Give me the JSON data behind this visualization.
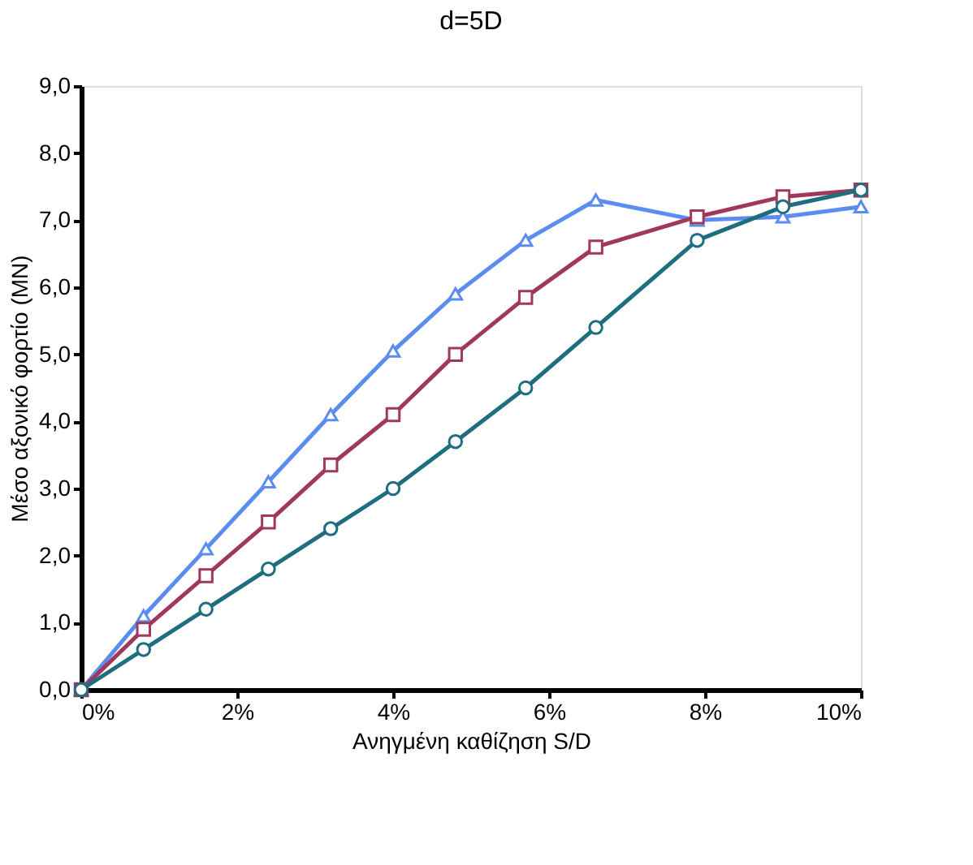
{
  "chart_data": {
    "type": "line",
    "title": "d=5D",
    "xlabel": "Ανηγμένη καθίζηση S/D",
    "ylabel": "Μέσο αξονικό φορτίο (MN)",
    "x": [
      0,
      0.8,
      1.6,
      2.4,
      3.2,
      4.0,
      4.8,
      5.7,
      6.6,
      7.9,
      9.0,
      10
    ],
    "series": [
      {
        "color": "#5b8cf0",
        "marker": "triangle",
        "values": [
          0,
          1.1,
          2.1,
          3.1,
          4.1,
          5.05,
          5.9,
          6.7,
          7.3,
          7.0,
          7.05,
          7.2
        ]
      },
      {
        "color": "#a0385a",
        "marker": "square",
        "values": [
          0,
          0.9,
          1.7,
          2.5,
          3.35,
          4.1,
          5.0,
          5.85,
          6.6,
          7.05,
          7.35,
          7.45
        ]
      },
      {
        "color": "#1f6e7f",
        "marker": "circle",
        "values": [
          0,
          0.6,
          1.2,
          1.8,
          2.4,
          3.0,
          3.7,
          4.5,
          5.4,
          6.7,
          7.2,
          7.45
        ]
      }
    ],
    "xlim": [
      0,
      10
    ],
    "ylim": [
      0,
      9
    ],
    "xticks": [
      {
        "value": 0,
        "label": "0%"
      },
      {
        "value": 2,
        "label": "2%"
      },
      {
        "value": 4,
        "label": "4%"
      },
      {
        "value": 6,
        "label": "6%"
      },
      {
        "value": 8,
        "label": "8%"
      },
      {
        "value": 10,
        "label": "10%"
      }
    ],
    "yticks": [
      {
        "value": 0,
        "label": "0,0"
      },
      {
        "value": 1,
        "label": "1,0"
      },
      {
        "value": 2,
        "label": "2,0"
      },
      {
        "value": 3,
        "label": "3,0"
      },
      {
        "value": 4,
        "label": "4,0"
      },
      {
        "value": 5,
        "label": "5,0"
      },
      {
        "value": 6,
        "label": "6,0"
      },
      {
        "value": 7,
        "label": "7,0"
      },
      {
        "value": 8,
        "label": "8,0"
      },
      {
        "value": 9,
        "label": "9,0"
      }
    ],
    "tick_labels": true
  }
}
